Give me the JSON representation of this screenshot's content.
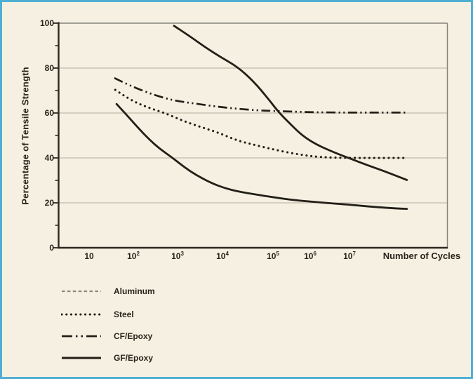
{
  "figure": {
    "background_color": "#f5f0e2",
    "border_color": "#4fafd3",
    "ink_color": "#29241b",
    "grid_color": "#b6ae9c",
    "frame_color": "#85837a",
    "legend_dash_gray": "#8c8679"
  },
  "chart_data": {
    "type": "line",
    "title": "",
    "xlabel": "Number of Cycles",
    "ylabel": "Percentage of Tensile Strength",
    "x_scale": "log",
    "x_unit": "log10 of number of cycles",
    "x_tick_labels": [
      {
        "base": "10",
        "exponent": ""
      },
      {
        "base": "10",
        "exponent": "2"
      },
      {
        "base": "10",
        "exponent": "3"
      },
      {
        "base": "10",
        "exponent": "4"
      },
      {
        "base": "10",
        "exponent": "5"
      },
      {
        "base": "10",
        "exponent": "6"
      },
      {
        "base": "10",
        "exponent": "7"
      }
    ],
    "y_ticks": [
      0,
      20,
      40,
      60,
      80,
      100
    ],
    "y_minor_tick_step": 10,
    "ylim": [
      0,
      100
    ],
    "grid": "horizontal",
    "legend_position": "below-left",
    "series": [
      {
        "name": "Aluminum",
        "plot_style": "solid",
        "legend_style": "dashed-gray",
        "points": [
          [
            2.92,
            98.8
          ],
          [
            3.25,
            94.5
          ],
          [
            3.6,
            89.5
          ],
          [
            3.95,
            85
          ],
          [
            4.3,
            80.5
          ],
          [
            4.62,
            74
          ],
          [
            4.9,
            66.5
          ],
          [
            5.17,
            60
          ],
          [
            5.5,
            54.5
          ],
          [
            5.8,
            49.8
          ],
          [
            6.15,
            46
          ],
          [
            6.6,
            42.5
          ],
          [
            7.0,
            39.8
          ],
          [
            7.45,
            36.8
          ],
          [
            7.9,
            34
          ],
          [
            8.46,
            30.2
          ]
        ]
      },
      {
        "name": "Steel",
        "plot_style": "dotted",
        "legend_style": "dotted",
        "points": [
          [
            1.59,
            70.3
          ],
          [
            1.92,
            65.9
          ],
          [
            2.32,
            62.5
          ],
          [
            2.71,
            60
          ],
          [
            3.11,
            56.6
          ],
          [
            3.51,
            53.8
          ],
          [
            3.9,
            51.3
          ],
          [
            4.28,
            47.8
          ],
          [
            4.67,
            45.6
          ],
          [
            5.11,
            43.4
          ],
          [
            5.7,
            41.5
          ],
          [
            6.25,
            40.3
          ],
          [
            6.9,
            40
          ],
          [
            7.6,
            40
          ],
          [
            8.46,
            40
          ]
        ]
      },
      {
        "name": "CF/Epoxy",
        "plot_style": "dash-dot-dot",
        "legend_style": "dash-dot-dot",
        "points": [
          [
            1.57,
            75.6
          ],
          [
            1.92,
            72.2
          ],
          [
            2.32,
            69.1
          ],
          [
            2.71,
            66.6
          ],
          [
            3.0,
            65.3
          ],
          [
            3.43,
            64.1
          ],
          [
            3.89,
            62.8
          ],
          [
            4.28,
            61.9
          ],
          [
            4.67,
            61.2
          ],
          [
            5.0,
            60.9
          ],
          [
            5.6,
            60.6
          ],
          [
            6.15,
            60.3
          ],
          [
            6.9,
            60.2
          ],
          [
            7.6,
            60.2
          ],
          [
            8.46,
            60.2
          ]
        ]
      },
      {
        "name": "GF/Epoxy",
        "plot_style": "solid",
        "legend_style": "solid",
        "points": [
          [
            1.62,
            64
          ],
          [
            1.81,
            60
          ],
          [
            2.08,
            54
          ],
          [
            2.35,
            48.4
          ],
          [
            2.6,
            44
          ],
          [
            2.87,
            40.3
          ],
          [
            3.14,
            36
          ],
          [
            3.43,
            32.2
          ],
          [
            3.75,
            28.8
          ],
          [
            4.05,
            26.5
          ],
          [
            4.32,
            25
          ],
          [
            4.67,
            23.7
          ],
          [
            5.0,
            22.5
          ],
          [
            5.5,
            21.3
          ],
          [
            6.0,
            20.6
          ],
          [
            6.5,
            19.8
          ],
          [
            7.0,
            19.2
          ],
          [
            7.6,
            18.2
          ],
          [
            8.1,
            17.6
          ],
          [
            8.46,
            17.3
          ]
        ]
      }
    ],
    "legend": [
      {
        "label": "Aluminum",
        "style": "dashed-gray"
      },
      {
        "label": "Steel",
        "style": "dotted"
      },
      {
        "label": "CF/Epoxy",
        "style": "dash-dot-dot"
      },
      {
        "label": "GF/Epoxy",
        "style": "solid"
      }
    ]
  }
}
